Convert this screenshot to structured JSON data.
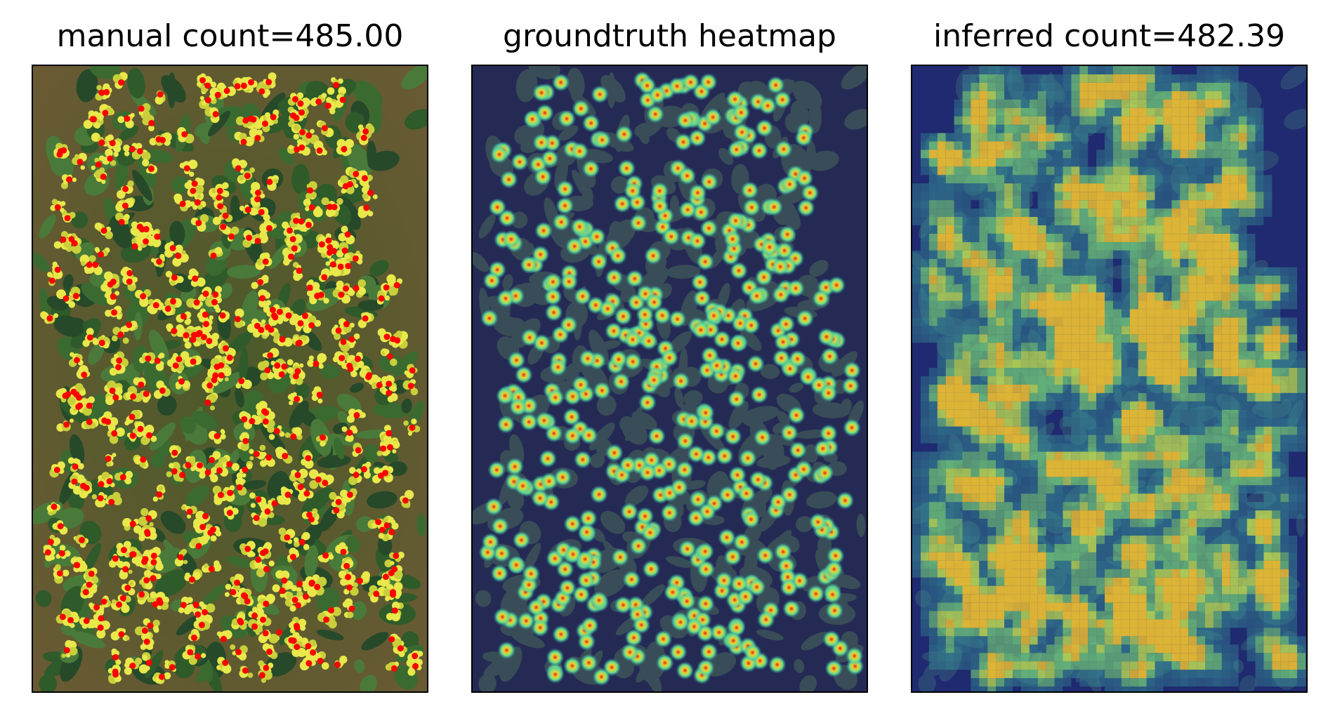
{
  "panels": [
    {
      "title": "manual count=485.00",
      "kind": "photo-annotated"
    },
    {
      "title": "groundtruth heatmap",
      "kind": "density-heatmap"
    },
    {
      "title": "inferred count=482.39",
      "kind": "inferred-heatmap"
    }
  ],
  "colors": {
    "soil": "#5b4d2a",
    "leaf": "#2f5a2a",
    "flower": "#e7e84a",
    "annotation_dot": "#ff0000",
    "heatmap_bg": "#242a5a"
  }
}
